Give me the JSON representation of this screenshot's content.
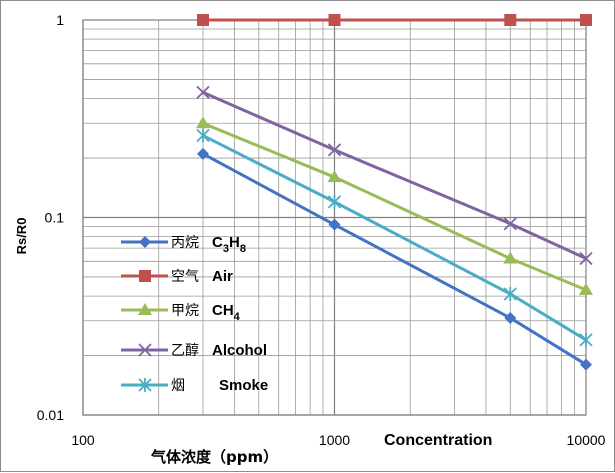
{
  "chart_data": {
    "type": "line",
    "title": "",
    "xlabel": "气体浓度（ppm）",
    "ylabel": "Rs/R0",
    "annotation": "Concentration",
    "x_scale": "log",
    "y_scale": "log",
    "xlim": [
      100,
      10000
    ],
    "ylim": [
      0.01,
      1
    ],
    "x_ticks": [
      "100",
      "1000",
      "10000"
    ],
    "y_ticks": [
      "1",
      "0.1",
      "0.01"
    ],
    "grid": true,
    "legend_position": "lower-left",
    "x": [
      300,
      1000,
      5000,
      10000
    ],
    "series": [
      {
        "name_cn": "丙烷",
        "name_en": "C3H8",
        "formula": {
          "base": "C",
          "sub1": "3",
          "mid": "H",
          "sub2": "8"
        },
        "color": "#4472c4",
        "marker": "diamond",
        "values": [
          0.21,
          0.092,
          0.031,
          0.018
        ]
      },
      {
        "name_cn": "空气",
        "name_en": "Air",
        "color": "#c0504d",
        "marker": "square",
        "values": [
          1.0,
          1.0,
          1.0,
          1.0
        ]
      },
      {
        "name_cn": "甲烷",
        "name_en": "CH4",
        "formula": {
          "base": "CH",
          "sub1": "4",
          "mid": "",
          "sub2": ""
        },
        "color": "#9bbb59",
        "marker": "triangle",
        "values": [
          0.3,
          0.16,
          0.062,
          0.043
        ]
      },
      {
        "name_cn": "乙醇",
        "name_en": "Alcohol",
        "color": "#8064a2",
        "marker": "x",
        "values": [
          0.43,
          0.22,
          0.093,
          0.062
        ]
      },
      {
        "name_cn": "烟",
        "name_en": "Smoke",
        "color": "#4bacc6",
        "marker": "star",
        "values": [
          0.26,
          0.12,
          0.041,
          0.024
        ]
      }
    ]
  }
}
